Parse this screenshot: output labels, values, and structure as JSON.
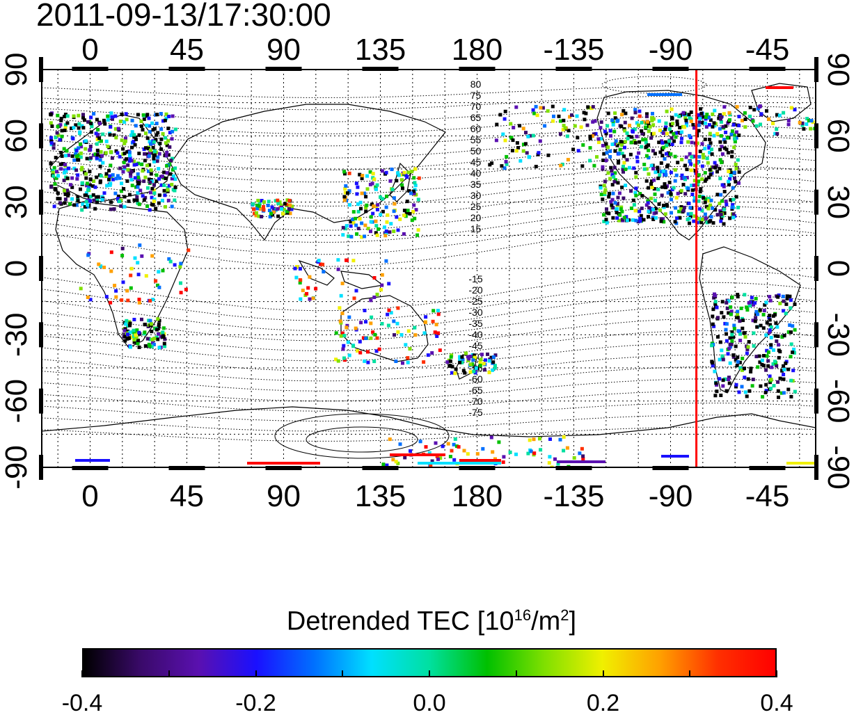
{
  "timestamp": "2011-09-13/17:30:00",
  "colorbar": {
    "title_prefix": "Detrended TEC  [10",
    "title_sup1": "16",
    "title_mid": "/m",
    "title_sup2": "2",
    "title_suffix": "]",
    "min": -0.4,
    "max": 0.4,
    "tick_labels": [
      "-0.4",
      "-0.2",
      "0.0",
      "0.2",
      "0.4"
    ],
    "colors": [
      "#000000",
      "#3a0a6a",
      "#5a10b0",
      "#1a10ff",
      "#0070ff",
      "#00e0ff",
      "#00e0a0",
      "#00c000",
      "#80e000",
      "#f0f000",
      "#ffa000",
      "#ff3000",
      "#ff0000"
    ]
  },
  "map": {
    "longitude_labels_top": [
      "0",
      "45",
      "90",
      "135",
      "180",
      "-135",
      "-90",
      "-45"
    ],
    "longitude_labels_bottom": [
      "0",
      "45",
      "90",
      "135",
      "180",
      "-135",
      "-90",
      "-45"
    ],
    "latitude_labels_left": [
      "90",
      "60",
      "30",
      "0",
      "-30",
      "-60",
      "-90"
    ],
    "latitude_labels_right": [
      "90",
      "60",
      "30",
      "0",
      "-30",
      "-60",
      "-90"
    ],
    "longitude_values": [
      0,
      45,
      90,
      135,
      180,
      225,
      270,
      315
    ],
    "latitude_values": [
      90,
      60,
      30,
      0,
      -30,
      -60,
      -90
    ],
    "marker_longitude": -78,
    "marker_color": "#ff0000",
    "contour_labels_north": [
      "80",
      "75",
      "70",
      "65",
      "60",
      "55",
      "50",
      "45",
      "40",
      "35",
      "30",
      "25",
      "20",
      "15"
    ],
    "contour_labels_south": [
      "-15",
      "-20",
      "-25",
      "-30",
      "-35",
      "-40",
      "-45",
      "-50",
      "-55",
      "-60",
      "-65",
      "-70",
      "-75"
    ]
  }
}
